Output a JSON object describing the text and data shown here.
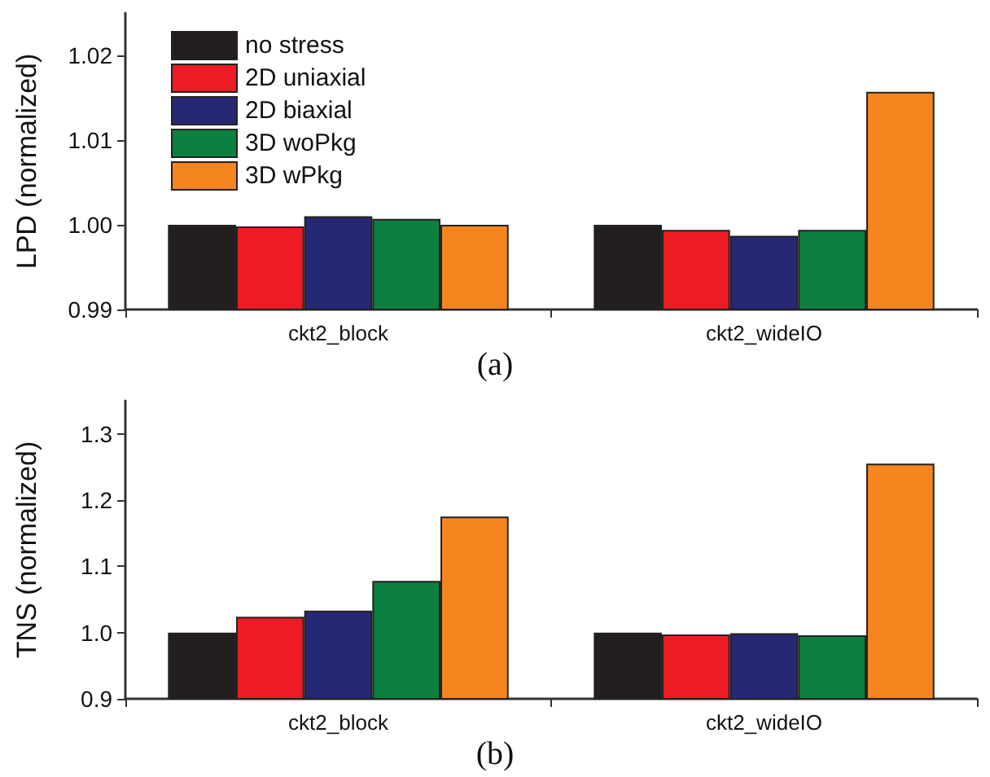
{
  "chart_data": [
    {
      "type": "bar",
      "ylabel": "LPD (normalized)",
      "categories": [
        "ckt2_block",
        "ckt2_wideIO"
      ],
      "ylim": [
        0.99,
        1.025
      ],
      "yticks": [
        0.99,
        {
          "value": 1,
          "label": "1.00"
        },
        1.01,
        1.02
      ],
      "legend": "top left",
      "grid": false,
      "annotations": [
        "(a)"
      ],
      "series": [
        {
          "name": "no stress",
          "color": "#231f20",
          "values": [
            1.0,
            1.0
          ]
        },
        {
          "name": "2D uniaxial",
          "color": "#ed1c24",
          "values": [
            0.9998,
            0.9994
          ]
        },
        {
          "name": "2D biaxial",
          "color": "#262875",
          "values": [
            1.001,
            0.9987
          ]
        },
        {
          "name": "3D woPkg",
          "color": "#0b8040",
          "values": [
            1.0007,
            0.9994
          ]
        },
        {
          "name": "3D wPkg",
          "color": "#f7851f",
          "values": [
            1.0,
            1.0157
          ]
        }
      ]
    },
    {
      "type": "bar",
      "ylabel": "TNS (normalized)",
      "categories": [
        "ckt2_block",
        "ckt2_wideIO"
      ],
      "ylim": [
        0.9,
        1.35
      ],
      "yticks": [
        0.9,
        {
          "value": 1,
          "label": "1.0"
        },
        1.1,
        1.2,
        1.3
      ],
      "legend": false,
      "grid": false,
      "annotations": [
        "(b)"
      ],
      "series": [
        {
          "color": "#231f20",
          "values": [
            1.0,
            1.0
          ]
        },
        {
          "color": "#ed1c24",
          "values": [
            1.024,
            0.997
          ]
        },
        {
          "color": "#262875",
          "values": [
            1.033,
            0.999
          ]
        },
        {
          "color": "#0b8040",
          "values": [
            1.078,
            0.996
          ]
        },
        {
          "color": "#f7851f",
          "values": [
            1.175,
            1.255
          ]
        }
      ]
    }
  ]
}
